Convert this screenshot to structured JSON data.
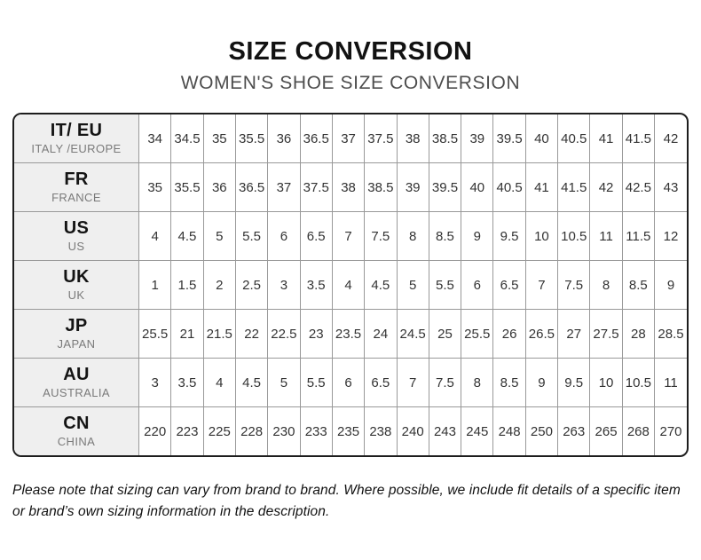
{
  "header": {
    "title": "SIZE CONVERSION",
    "subtitle": "WOMEN'S SHOE SIZE CONVERSION"
  },
  "table": {
    "rows": [
      {
        "code": "IT/ EU",
        "region": "ITALY /EUROPE",
        "values": [
          "34",
          "34.5",
          "35",
          "35.5",
          "36",
          "36.5",
          "37",
          "37.5",
          "38",
          "38.5",
          "39",
          "39.5",
          "40",
          "40.5",
          "41",
          "41.5",
          "42"
        ]
      },
      {
        "code": "FR",
        "region": "FRANCE",
        "values": [
          "35",
          "35.5",
          "36",
          "36.5",
          "37",
          "37.5",
          "38",
          "38.5",
          "39",
          "39.5",
          "40",
          "40.5",
          "41",
          "41.5",
          "42",
          "42.5",
          "43"
        ]
      },
      {
        "code": "US",
        "region": "US",
        "values": [
          "4",
          "4.5",
          "5",
          "5.5",
          "6",
          "6.5",
          "7",
          "7.5",
          "8",
          "8.5",
          "9",
          "9.5",
          "10",
          "10.5",
          "11",
          "11.5",
          "12"
        ]
      },
      {
        "code": "UK",
        "region": "UK",
        "values": [
          "1",
          "1.5",
          "2",
          "2.5",
          "3",
          "3.5",
          "4",
          "4.5",
          "5",
          "5.5",
          "6",
          "6.5",
          "7",
          "7.5",
          "8",
          "8.5",
          "9"
        ]
      },
      {
        "code": "JP",
        "region": "JAPAN",
        "values": [
          "25.5",
          "21",
          "21.5",
          "22",
          "22.5",
          "23",
          "23.5",
          "24",
          "24.5",
          "25",
          "25.5",
          "26",
          "26.5",
          "27",
          "27.5",
          "28",
          "28.5"
        ]
      },
      {
        "code": "AU",
        "region": "AUSTRALIA",
        "values": [
          "3",
          "3.5",
          "4",
          "4.5",
          "5",
          "5.5",
          "6",
          "6.5",
          "7",
          "7.5",
          "8",
          "8.5",
          "9",
          "9.5",
          "10",
          "10.5",
          "11"
        ]
      },
      {
        "code": "CN",
        "region": "CHINA",
        "values": [
          "220",
          "223",
          "225",
          "228",
          "230",
          "233",
          "235",
          "238",
          "240",
          "243",
          "245",
          "248",
          "250",
          "263",
          "265",
          "268",
          "270"
        ]
      }
    ]
  },
  "footer": {
    "note": "Please note that sizing can vary from brand to brand. Where possible, we include fit details of a specific item or brand’s own sizing information in the description."
  },
  "colors": {
    "label_bg": "#efefef",
    "outer_border": "#1d1d1d",
    "inner_border": "#999999",
    "title_text": "#121212",
    "subtitle_text": "#4d4d4d",
    "value_text": "#333333"
  }
}
